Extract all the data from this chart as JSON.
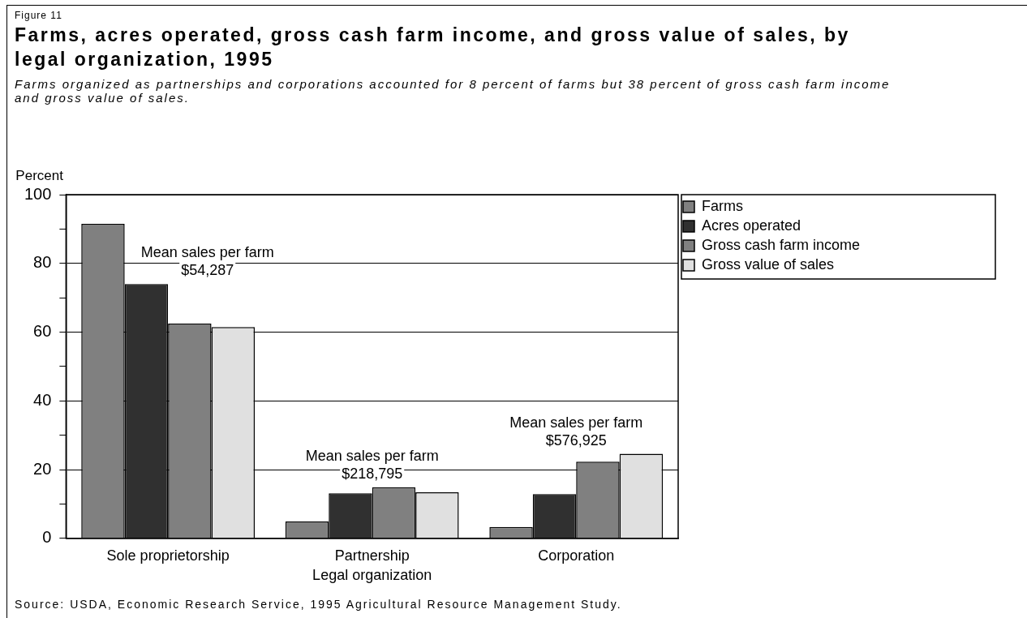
{
  "chart_data": {
    "type": "bar",
    "title": "Farms, acres operated, gross cash farm income, and gross value of sales, by legal organization, 1995",
    "subtitle": "Farms organized as partnerships and corporations accounted for 8 percent of farms but 38 percent of gross cash farm income and gross value of sales.",
    "xlabel": "Legal organization",
    "ylabel": "Percent",
    "categories": [
      "Sole proprietorship",
      "Partnership",
      "Corporation"
    ],
    "series": [
      {
        "name": "Farms",
        "color": "#808080",
        "values": [
          91.5,
          4.9,
          3.3
        ]
      },
      {
        "name": "Acres operated",
        "color": "#303030",
        "values": [
          74.0,
          13.1,
          12.9
        ]
      },
      {
        "name": "Gross cash farm income",
        "color": "#808080",
        "values": [
          62.5,
          14.9,
          22.3
        ]
      },
      {
        "name": "Gross value of sales",
        "color": "#e0e0e0",
        "values": [
          61.5,
          13.4,
          24.6
        ]
      }
    ],
    "ylim": [
      0,
      100
    ],
    "yticks": [
      0,
      {
        "value": 10,
        "label": null
      },
      20,
      {
        "value": 30,
        "label": null
      },
      40,
      {
        "value": 50,
        "label": null
      },
      60,
      {
        "value": 70,
        "label": null
      },
      80,
      {
        "value": 90,
        "label": null
      },
      100
    ],
    "grid": "y",
    "legend": "top right",
    "annotations": [
      "Figure 11",
      "Mean sales per farm\n$54,287",
      "Mean sales per farm\n$218,795",
      "Mean sales per farm\n$576,925",
      "Source:  USDA, Economic Research Service, 1995 Agricultural Resource Management Study."
    ]
  }
}
